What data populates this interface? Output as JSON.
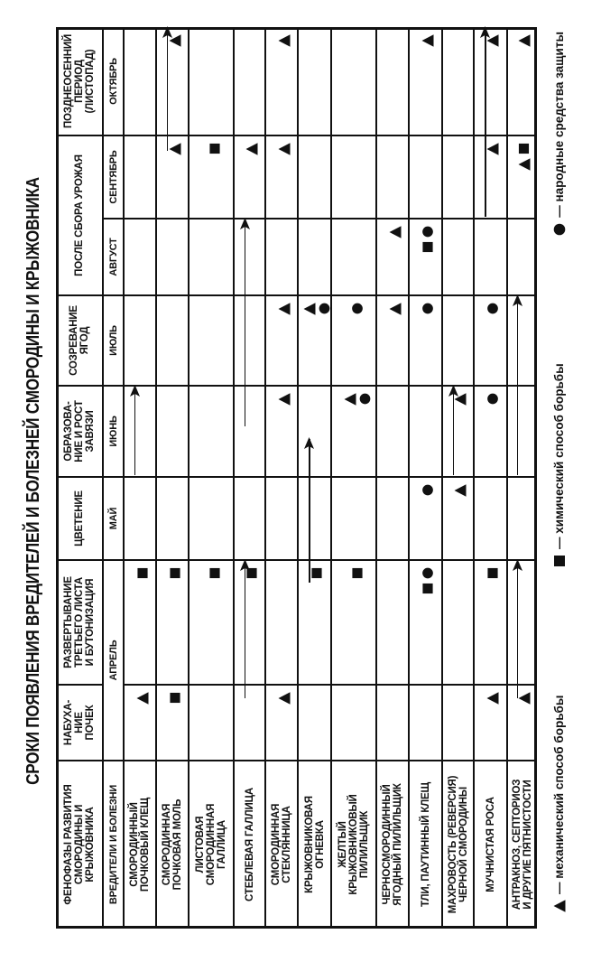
{
  "title": "СРОКИ ПОЯВЛЕНИЯ ВРЕДИТЕЛЕЙ И БОЛЕЗНЕЙ СМОРОДИНЫ И КРЫЖОВНИКА",
  "header": {
    "phases_title": "ФЕНОФАЗЫ РАЗВИТИЯ\nСМОРОДИНЫ И\nКРЫЖОВНИКА",
    "pests_title": "ВРЕДИТЕЛИ И БОЛЕЗНИ"
  },
  "phases": [
    {
      "label": "НАБУХА-\nНИЕ\nПОЧЕК",
      "cols": [
        "bud"
      ]
    },
    {
      "label": "РАЗВЕРТЫВАНИЕ\nТРЕТЬЕГО ЛИСТА\nИ БУТОНИЗАЦИЯ",
      "cols": [
        "leaf"
      ]
    },
    {
      "label": "ЦВЕТЕНИЕ",
      "cols": [
        "bloom"
      ]
    },
    {
      "label": "ОБРАЗОВА-\nНИЕ И РОСТ\nЗАВЯЗИ",
      "cols": [
        "jun"
      ]
    },
    {
      "label": "СОЗРЕВАНИЕ\nЯГОД",
      "cols": [
        "jul"
      ]
    },
    {
      "label": "ПОСЛЕ СБОРА УРОЖАЯ",
      "cols": [
        "aug",
        "sep"
      ]
    },
    {
      "label": "ПОЗДНЕОСЕННИЙ\nПЕРИОД\n(ЛИСТОПАД)",
      "cols": [
        "oct"
      ]
    }
  ],
  "months": [
    {
      "label": "АПРЕЛЬ",
      "cols": [
        "bud",
        "leaf"
      ]
    },
    {
      "label": "МАЙ",
      "cols": [
        "bloom"
      ]
    },
    {
      "label": "ИЮНЬ",
      "cols": [
        "jun"
      ]
    },
    {
      "label": "ИЮЛЬ",
      "cols": [
        "jul"
      ]
    },
    {
      "label": "АВГУСТ",
      "cols": [
        "aug"
      ]
    },
    {
      "label": "СЕНТЯБРЬ",
      "cols": [
        "sep"
      ]
    },
    {
      "label": "ОКТЯБРЬ",
      "cols": [
        "oct"
      ]
    }
  ],
  "rows": [
    {
      "name": "СМОРОДИННЫЙ\nПОЧКОВЫЙ КЛЕЩ",
      "markers": {
        "bud": [
          "triangle"
        ],
        "leaf": [
          "square"
        ]
      },
      "arrows": [
        {
          "from": "jun",
          "from_part": "start",
          "to": "jun",
          "to_part": "end"
        }
      ]
    },
    {
      "name": "СМОРОДИННАЯ\nПОЧКОВАЯ МОЛЬ",
      "markers": {
        "bud": [
          "square"
        ],
        "leaf": [
          "square"
        ],
        "sep": [
          "triangle"
        ],
        "oct": [
          "triangle"
        ]
      },
      "arrows": [
        {
          "from": "sep",
          "from_part": "late",
          "to": "oct",
          "to_part": "end"
        }
      ]
    },
    {
      "name": "ЛИСТОВАЯ\nСМОРОДИННАЯ\nГАЛЛИЦА",
      "markers": {
        "leaf": [
          "square"
        ],
        "sep": [
          "square"
        ]
      },
      "arrows": []
    },
    {
      "name": "СТЕБЛЕВАЯ ГАЛЛИЦА",
      "markers": {
        "leaf": [
          "square"
        ],
        "sep": [
          "triangle"
        ]
      },
      "arrows": [
        {
          "from": "bud",
          "from_part": "late",
          "to": "leaf",
          "to_part": "end"
        },
        {
          "from": "jun",
          "from_part": "mid",
          "to": "aug",
          "to_part": "end"
        }
      ]
    },
    {
      "name": "СМОРОДИННАЯ\nСТЕКЛЯННИЦА",
      "markers": {
        "bud": [
          "triangle"
        ],
        "jun": [
          "triangle"
        ],
        "jul": [
          "triangle"
        ],
        "sep": [
          "triangle"
        ],
        "oct": [
          "triangle"
        ]
      },
      "arrows": []
    },
    {
      "name": "КРЫЖОВНИКОВАЯ\nОГНЕВКА",
      "markers": {
        "leaf": [
          "square"
        ],
        "jul": [
          "triangle",
          "circle"
        ]
      },
      "arrows": [
        {
          "from": "leaf",
          "from_part": "late",
          "to": "jun",
          "to_part": "mid"
        }
      ]
    },
    {
      "name": "ЖЕЛТЫЙ\nКРЫЖОВНИКОВЫЙ\nПИЛИЛЬЩИК",
      "markers": {
        "leaf": [
          "square"
        ],
        "jun": [
          "triangle",
          "circle"
        ],
        "jul": [
          "circle"
        ]
      },
      "arrows": []
    },
    {
      "name": "ЧЕРНОСМОРОДИННЫЙ\nЯГОДНЫЙ ПИЛИЛЬЩИК",
      "markers": {
        "jul": [
          "triangle"
        ],
        "aug": [
          "triangle"
        ]
      },
      "arrows": []
    },
    {
      "name": "ТЛИ, ПАУТИННЫЙ КЛЕЩ",
      "markers": {
        "leaf": [
          "square",
          "circle"
        ],
        "bloom": [
          "circle"
        ],
        "jul": [
          "circle"
        ],
        "aug": [
          "square",
          "circle"
        ],
        "oct": [
          "triangle"
        ]
      },
      "arrows": []
    },
    {
      "name": "МАХРОВОСТЬ (РЕВЕРСИЯ)\nЧЕРНОЙ СМОРОДИНЫ",
      "markers": {
        "bloom": [
          "triangle"
        ],
        "jun": [
          "triangle"
        ]
      },
      "arrows": [
        {
          "from": "jun",
          "from_part": "start",
          "to": "jun",
          "to_part": "end"
        }
      ]
    },
    {
      "name": "МУЧНИСТАЯ РОСА",
      "markers": {
        "bud": [
          "triangle"
        ],
        "leaf": [
          "square"
        ],
        "jun": [
          "circle"
        ],
        "jul": [
          "circle"
        ],
        "sep": [
          "triangle"
        ],
        "oct": [
          "triangle"
        ]
      },
      "arrows": [
        {
          "from": "sep",
          "from_part": "start",
          "to": "oct",
          "to_part": "end"
        }
      ]
    },
    {
      "name": "АНТРАКНОЗ, СЕПТОРИОЗ\nИ ДРУГИЕ ПЯТНИСТОСТИ",
      "markers": {
        "bud": [
          "triangle"
        ],
        "sep": [
          "triangle",
          "square"
        ],
        "oct": [
          "triangle"
        ]
      },
      "arrows": [
        {
          "from": "bud",
          "from_part": "late",
          "to": "leaf",
          "to_part": "end"
        },
        {
          "from": "jun",
          "from_part": "start",
          "to": "jul",
          "to_part": "end"
        }
      ]
    }
  ],
  "legend": [
    {
      "symbol": "triangle",
      "label": "— механический способ борьбы"
    },
    {
      "symbol": "square",
      "label": "— химический способ борьбы"
    },
    {
      "symbol": "circle",
      "label": "— народные средства защиты"
    }
  ],
  "colors": {
    "ink": "#111111",
    "paper": "#ffffff"
  }
}
